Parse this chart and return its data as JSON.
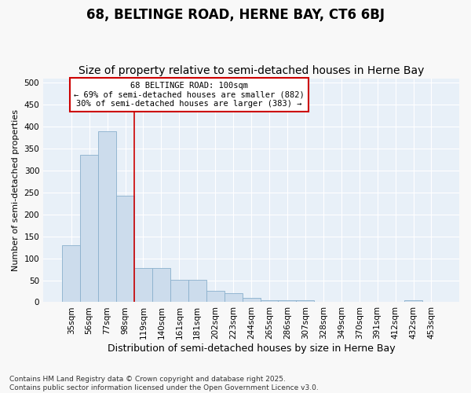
{
  "title": "68, BELTINGE ROAD, HERNE BAY, CT6 6BJ",
  "subtitle": "Size of property relative to semi-detached houses in Herne Bay",
  "xlabel": "Distribution of semi-detached houses by size in Herne Bay",
  "ylabel": "Number of semi-detached properties",
  "categories": [
    "35sqm",
    "56sqm",
    "77sqm",
    "98sqm",
    "119sqm",
    "140sqm",
    "161sqm",
    "181sqm",
    "202sqm",
    "223sqm",
    "244sqm",
    "265sqm",
    "286sqm",
    "307sqm",
    "328sqm",
    "349sqm",
    "370sqm",
    "391sqm",
    "412sqm",
    "432sqm",
    "453sqm"
  ],
  "values": [
    130,
    335,
    390,
    243,
    78,
    78,
    51,
    51,
    26,
    20,
    9,
    5,
    5,
    4,
    0,
    0,
    0,
    0,
    0,
    4,
    0
  ],
  "bar_color": "#ccdcec",
  "bar_edge_color": "#8ab0cc",
  "vline_x": 3.5,
  "vline_color": "#cc0000",
  "annotation_title": "68 BELTINGE ROAD: 100sqm",
  "annotation_line1": "← 69% of semi-detached houses are smaller (882)",
  "annotation_line2": "30% of semi-detached houses are larger (383) →",
  "annotation_box_facecolor": "#ffffff",
  "annotation_box_edgecolor": "#cc0000",
  "ylim": [
    0,
    510
  ],
  "yticks": [
    0,
    50,
    100,
    150,
    200,
    250,
    300,
    350,
    400,
    450,
    500
  ],
  "footnote": "Contains HM Land Registry data © Crown copyright and database right 2025.\nContains public sector information licensed under the Open Government Licence v3.0.",
  "title_fontsize": 12,
  "subtitle_fontsize": 10,
  "xlabel_fontsize": 9,
  "ylabel_fontsize": 8,
  "tick_fontsize": 7.5,
  "annotation_fontsize": 7.5,
  "footnote_fontsize": 6.5,
  "plot_bg_color": "#e8f0f8",
  "fig_bg_color": "#f8f8f8",
  "grid_color": "#ffffff"
}
